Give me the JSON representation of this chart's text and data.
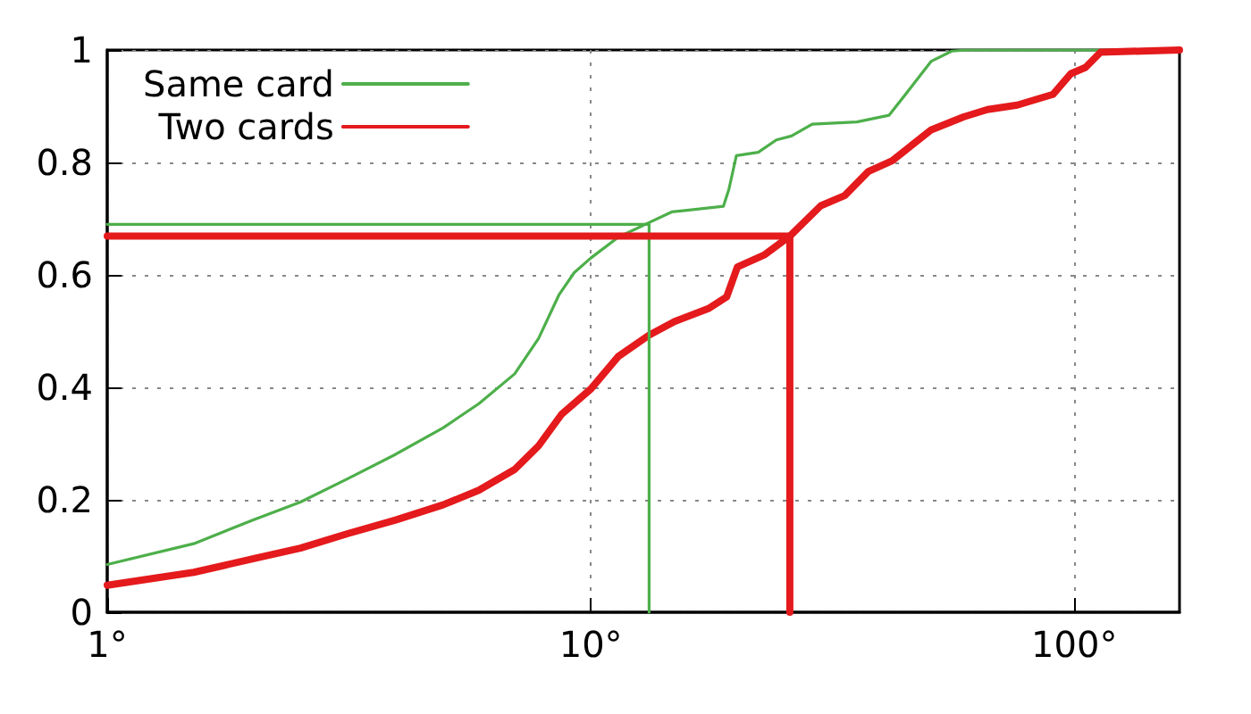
{
  "chart_data": {
    "type": "line",
    "log": "x",
    "grid": true,
    "legend": "top left",
    "marker": "none",
    "line_style": "solid",
    "xlim": [
      1,
      165
    ],
    "xticks": [
      {
        "value": 1,
        "label": "1°"
      },
      {
        "value": 10,
        "label": "10°"
      },
      {
        "value": 100,
        "label": "100°"
      }
    ],
    "ylim": [
      0,
      1
    ],
    "yticks": [
      0,
      0.2,
      0.4,
      0.6,
      0.8,
      1
    ],
    "series": [
      {
        "name": "Same card",
        "color": "#4daf4a",
        "x": [
          1,
          1.51,
          2,
          2.51,
          3.15,
          3.95,
          4.95,
          5.87,
          6.96,
          7.8,
          8.6,
          9.24,
          10,
          11.4,
          13.2,
          14.7,
          18.8,
          19.3,
          20,
          22.2,
          24.2,
          26,
          28.7,
          35.5,
          41.4,
          45.8,
          50.6,
          55.8,
          60,
          165
        ],
        "values": [
          0.085,
          0.122,
          0.164,
          0.196,
          0.238,
          0.281,
          0.328,
          0.371,
          0.424,
          0.487,
          0.565,
          0.604,
          0.63,
          0.667,
          0.693,
          0.712,
          0.722,
          0.752,
          0.812,
          0.818,
          0.84,
          0.847,
          0.868,
          0.872,
          0.884,
          0.932,
          0.98,
          0.998,
          1,
          1
        ]
      },
      {
        "name": "Two cards",
        "color": "#e41a1c",
        "x": [
          1,
          1.51,
          2,
          2.51,
          3.15,
          3.95,
          4.95,
          5.87,
          6.96,
          7.8,
          8.7,
          10,
          11.4,
          13.2,
          14.9,
          17.5,
          19.1,
          20.1,
          22.9,
          25.8,
          29.9,
          33.5,
          37.5,
          42,
          50.6,
          59,
          66.1,
          76.2,
          90.3,
          98.4,
          105.5,
          113.3,
          165
        ],
        "values": [
          0.048,
          0.071,
          0.095,
          0.114,
          0.14,
          0.164,
          0.191,
          0.217,
          0.254,
          0.296,
          0.352,
          0.397,
          0.455,
          0.493,
          0.517,
          0.54,
          0.561,
          0.614,
          0.636,
          0.669,
          0.723,
          0.741,
          0.784,
          0.803,
          0.858,
          0.881,
          0.894,
          0.902,
          0.921,
          0.958,
          0.969,
          0.996,
          1
        ]
      },
      {
        "color": "#4daf4a",
        "x": [
          1,
          13.2,
          13.2
        ],
        "values": [
          0.69,
          0.69,
          0
        ]
      },
      {
        "color": "#e41a1c",
        "x": [
          1,
          25.8,
          25.8
        ],
        "values": [
          0.669,
          0.669,
          0
        ]
      }
    ]
  }
}
